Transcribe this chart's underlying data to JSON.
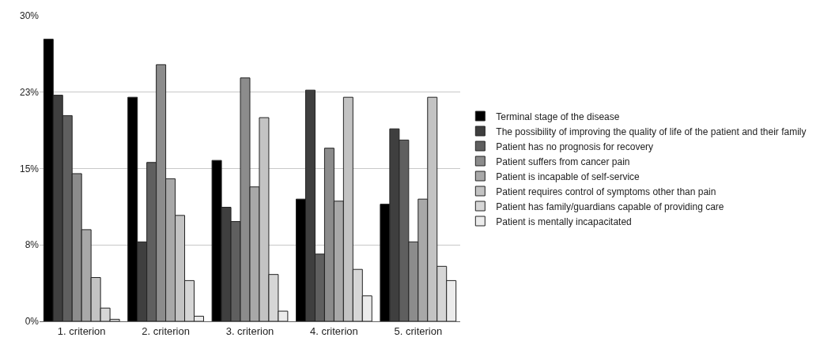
{
  "chart_data": {
    "type": "bar",
    "categories": [
      "1. criterion",
      "2. criterion",
      "3. criterion",
      "4. criterion",
      "5. criterion"
    ],
    "series": [
      {
        "name": "Terminal stage of the disease",
        "color": "#000000",
        "values": [
          27.7,
          22.0,
          15.8,
          12.0,
          11.5
        ]
      },
      {
        "name": "The possibility of improving the quality of life of the patient and their family",
        "color": "#3f3f3f",
        "values": [
          22.2,
          7.8,
          11.2,
          22.7,
          18.9
        ]
      },
      {
        "name": "Patient has no prognosis for recovery",
        "color": "#5f5f5f",
        "values": [
          20.2,
          15.6,
          9.8,
          6.6,
          17.8
        ]
      },
      {
        "name": "Patient suffers from cancer pain",
        "color": "#8c8c8c",
        "values": [
          14.5,
          25.2,
          23.9,
          17.0,
          7.8
        ]
      },
      {
        "name": "Patient is incapable of self-service",
        "color": "#a8a8a8",
        "values": [
          9.0,
          14.0,
          13.2,
          11.8,
          12.0
        ]
      },
      {
        "name": "Patient requires control of symptoms other than pain",
        "color": "#c3c3c3",
        "values": [
          4.3,
          10.4,
          20.0,
          22.0,
          22.0
        ]
      },
      {
        "name": "Patient has family/guardians capable of providing care",
        "color": "#d6d6d6",
        "values": [
          1.3,
          4.0,
          4.6,
          5.1,
          5.4
        ]
      },
      {
        "name": "Patient is mentally incapacitated",
        "color": "#ececec",
        "values": [
          0.2,
          0.5,
          1.0,
          2.5,
          4.0
        ]
      }
    ],
    "ylim": [
      0,
      30
    ],
    "yticks": [
      {
        "value": 0,
        "label": "0%"
      },
      {
        "value": 7.5,
        "label": "8%"
      },
      {
        "value": 15,
        "label": "15%"
      },
      {
        "value": 22.5,
        "label": "23%"
      },
      {
        "value": 30,
        "label": "30%"
      }
    ],
    "grid": "y",
    "legend": "right"
  }
}
